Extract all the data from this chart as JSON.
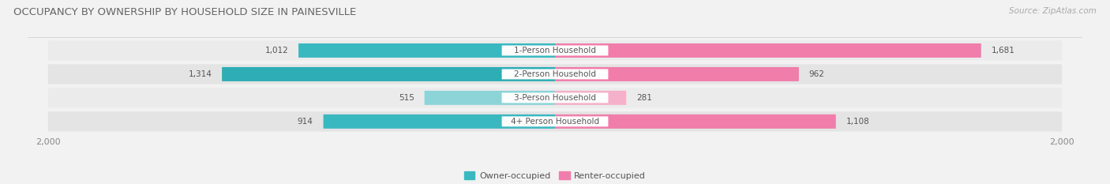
{
  "title": "OCCUPANCY BY OWNERSHIP BY HOUSEHOLD SIZE IN PAINESVILLE",
  "source": "Source: ZipAtlas.com",
  "categories": [
    "1-Person Household",
    "2-Person Household",
    "3-Person Household",
    "4+ Person Household"
  ],
  "owner_values": [
    1012,
    1314,
    515,
    914
  ],
  "renter_values": [
    1681,
    962,
    281,
    1108
  ],
  "max_scale": 2000,
  "owner_colors": [
    "#3ab8c0",
    "#2eadb5",
    "#8dd4d8",
    "#3ab8c0"
  ],
  "renter_colors": [
    "#f07daa",
    "#f07daa",
    "#f5b0ca",
    "#f07daa"
  ],
  "row_bg_color": "#e8e8e8",
  "row_bg_color_alt": "#f0f0f0",
  "background_color": "#f2f2f2",
  "label_bg_color": "#ffffff",
  "text_color": "#555555",
  "source_color": "#aaaaaa",
  "axis_text_color": "#888888",
  "title_fontsize": 9.5,
  "source_fontsize": 7.5,
  "value_fontsize": 7.5,
  "cat_fontsize": 7.5,
  "axis_fontsize": 8,
  "legend_fontsize": 8
}
